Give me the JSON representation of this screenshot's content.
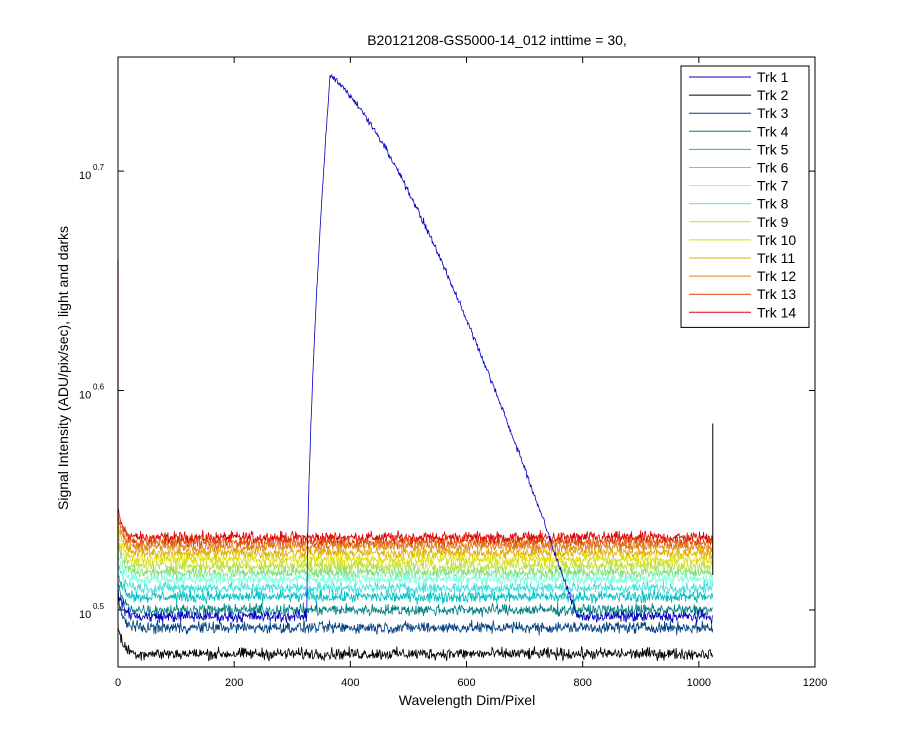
{
  "chart_data": {
    "type": "line",
    "title": "B20121208-GS5000-14_012 inttime = 30,",
    "xlabel": "Wavelength Dim/Pixel",
    "ylabel": "Signal Intensity (ADU/pix/sec), light and darks",
    "xlim": [
      0,
      1200
    ],
    "ylim_log10": [
      0.474,
      0.752
    ],
    "yscale": "log",
    "xticks": [
      "0",
      "200",
      "400",
      "600",
      "800",
      "1000",
      "1200"
    ],
    "yticks": [
      {
        "base": "10",
        "exp": "0.5",
        "log10": 0.5
      },
      {
        "base": "10",
        "exp": "0.6",
        "log10": 0.6
      },
      {
        "base": "10",
        "exp": "0.7",
        "log10": 0.7
      }
    ],
    "grid": false,
    "legend_position": "top-right",
    "series": [
      {
        "name": "Trk 1",
        "color": "#0000bf",
        "baseline_log10": 0.497,
        "peak": {
          "start_x": 325,
          "peak_x": 365,
          "end_x": 790,
          "peak_log10": 0.743
        }
      },
      {
        "name": "Trk 2",
        "color": "#000000",
        "baseline_log10": 0.48
      },
      {
        "name": "Trk 3",
        "color": "#003f7f",
        "baseline_log10": 0.492
      },
      {
        "name": "Trk 4",
        "color": "#007f7f",
        "baseline_log10": 0.5
      },
      {
        "name": "Trk 5",
        "color": "#00bfbf",
        "baseline_log10": 0.506
      },
      {
        "name": "Trk 6",
        "color": "#3fdfdf",
        "baseline_log10": 0.51
      },
      {
        "name": "Trk 7",
        "color": "#7fffdf",
        "baseline_log10": 0.514
      },
      {
        "name": "Trk 8",
        "color": "#7fdf7f",
        "baseline_log10": 0.517
      },
      {
        "name": "Trk 9",
        "color": "#bfdf3f",
        "baseline_log10": 0.52
      },
      {
        "name": "Trk 10",
        "color": "#dfdf00",
        "baseline_log10": 0.523
      },
      {
        "name": "Trk 11",
        "color": "#dfaf00",
        "baseline_log10": 0.526
      },
      {
        "name": "Trk 12",
        "color": "#df7f1f",
        "baseline_log10": 0.529
      },
      {
        "name": "Trk 13",
        "color": "#df3f00",
        "baseline_log10": 0.531
      },
      {
        "name": "Trk 14",
        "color": "#df0000",
        "baseline_log10": 0.533
      }
    ],
    "data_x_range": [
      0,
      1024
    ],
    "noise_log10": 0.004
  }
}
